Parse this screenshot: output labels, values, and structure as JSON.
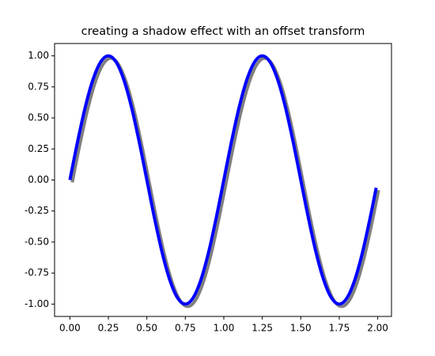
{
  "chart_data": {
    "type": "line",
    "title": "creating a shadow effect with an offset transform",
    "x": [
      0,
      0.05,
      0.1,
      0.15,
      0.2,
      0.25,
      0.3,
      0.35,
      0.4,
      0.45,
      0.5,
      0.55,
      0.6,
      0.65,
      0.7,
      0.75,
      0.8,
      0.85,
      0.9,
      0.95,
      1,
      1.05,
      1.1,
      1.15,
      1.2,
      1.25,
      1.3,
      1.35,
      1.4,
      1.45,
      1.5,
      1.55,
      1.6,
      1.65,
      1.7,
      1.75,
      1.8,
      1.85,
      1.9,
      1.95,
      1.99
    ],
    "series": [
      {
        "color": "blue",
        "shadow_color": "gray",
        "values": [
          0,
          0.309,
          0.588,
          0.809,
          0.951,
          1,
          0.951,
          0.809,
          0.588,
          0.309,
          0,
          -0.309,
          -0.588,
          -0.809,
          -0.951,
          -1,
          -0.951,
          -0.809,
          -0.588,
          -0.309,
          0,
          0.309,
          0.588,
          0.809,
          0.951,
          1,
          0.951,
          0.809,
          0.588,
          0.309,
          0,
          -0.309,
          -0.588,
          -0.809,
          -0.951,
          -1,
          -0.951,
          -0.809,
          -0.588,
          -0.309,
          -0.063
        ]
      }
    ],
    "xlim": [
      -0.0995,
      2.0895
    ],
    "ylim": [
      -1.0995,
      1.0995
    ],
    "xticks": [
      {
        "value": 0,
        "label": "0.00"
      },
      0.25,
      {
        "value": 0.5,
        "label": "0.50"
      },
      0.75,
      {
        "value": 1,
        "label": "1.00"
      },
      1.25,
      {
        "value": 1.5,
        "label": "1.50"
      },
      1.75,
      {
        "value": 2,
        "label": "2.00"
      }
    ],
    "yticks": [
      {
        "value": -1,
        "label": "-1.00"
      },
      -0.75,
      {
        "value": -0.5,
        "label": "-0.50"
      },
      -0.25,
      {
        "value": 0,
        "label": "0.00"
      },
      0.25,
      {
        "value": 0.5,
        "label": "0.50"
      },
      0.75,
      {
        "value": 1,
        "label": "1.00"
      }
    ],
    "grid": false
  }
}
